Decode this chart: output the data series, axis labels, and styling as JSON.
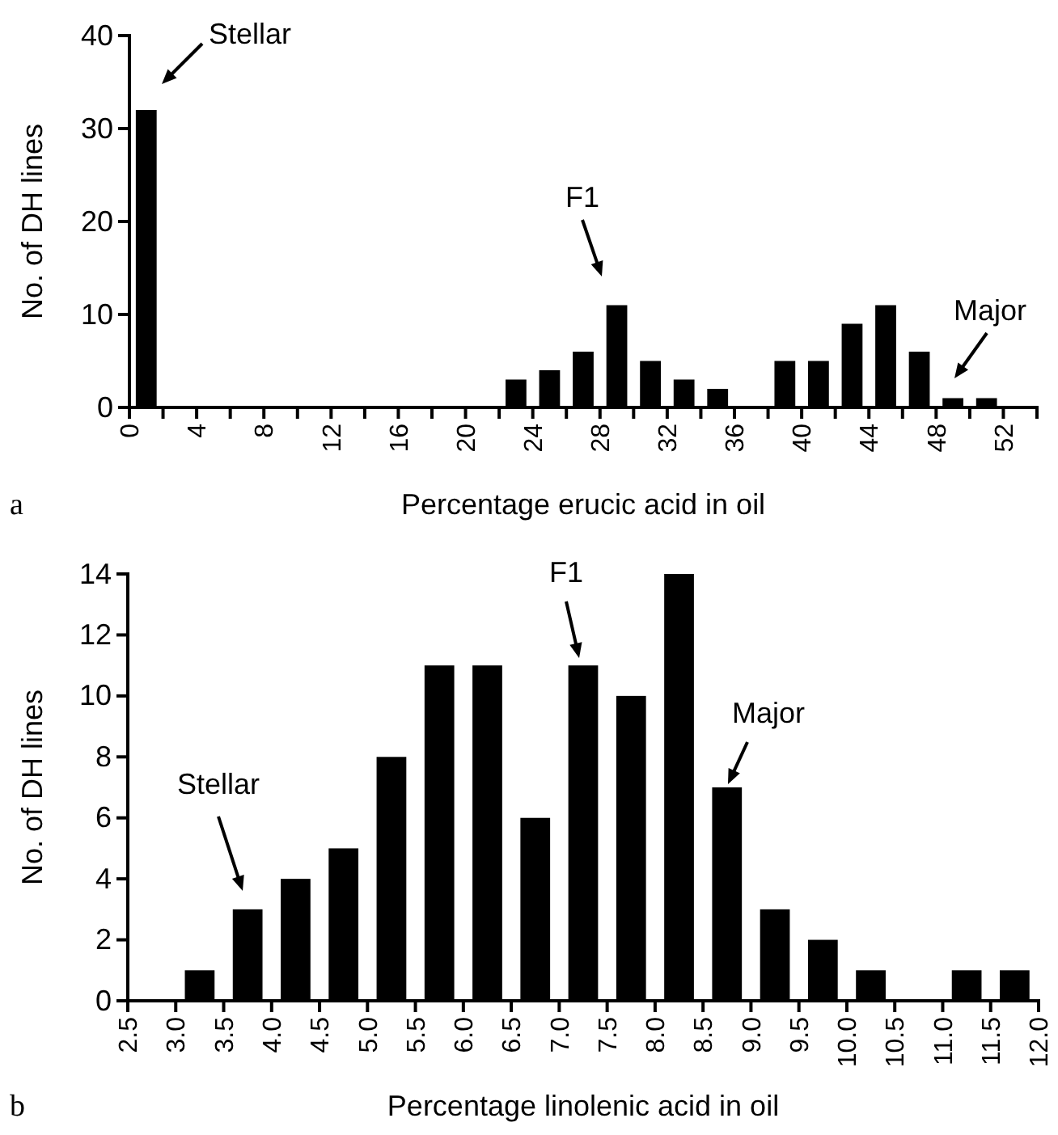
{
  "chart_data": [
    {
      "type": "histogram",
      "xlabel": "Percentage erucic acid in oil",
      "ylabel": "No. of DH lines",
      "bins": [
        0,
        2,
        4,
        6,
        8,
        10,
        12,
        14,
        16,
        18,
        20,
        22,
        24,
        26,
        28,
        30,
        32,
        34,
        36,
        38,
        40,
        42,
        44,
        46,
        48,
        50,
        52,
        54
      ],
      "values": [
        32,
        0,
        0,
        0,
        0,
        0,
        0,
        0,
        0,
        0,
        0,
        3,
        4,
        6,
        11,
        5,
        3,
        2,
        0,
        5,
        5,
        9,
        11,
        6,
        1,
        1,
        0
      ],
      "color": "#000000",
      "xlim": [
        0,
        54
      ],
      "ylim": [
        0,
        40
      ],
      "xticks": [
        0,
        {
          "value": 2,
          "label": null
        },
        4,
        {
          "value": 6,
          "label": null
        },
        8,
        {
          "value": 10,
          "label": null
        },
        12,
        {
          "value": 14,
          "label": null
        },
        16,
        {
          "value": 18,
          "label": null
        },
        20,
        {
          "value": 22,
          "label": null
        },
        24,
        {
          "value": 26,
          "label": null
        },
        28,
        {
          "value": 30,
          "label": null
        },
        32,
        {
          "value": 34,
          "label": null
        },
        36,
        {
          "value": 38,
          "label": null
        },
        40,
        {
          "value": 42,
          "label": null
        },
        44,
        {
          "value": 46,
          "label": null
        },
        48,
        {
          "value": 50,
          "label": null
        },
        52,
        {
          "value": 54,
          "label": null
        }
      ],
      "yticks": [
        0,
        10,
        20,
        30,
        40
      ],
      "annotations": [
        "Stellar",
        "F1",
        "Major",
        "a"
      ]
    },
    {
      "type": "histogram",
      "xlabel": "Percentage linolenic acid in oil",
      "ylabel": "No. of DH lines",
      "bins": [
        2.5,
        3.0,
        3.5,
        4.0,
        4.5,
        5.0,
        5.5,
        6.0,
        6.5,
        7.0,
        7.5,
        8.0,
        8.5,
        9.0,
        9.5,
        10.0,
        10.5,
        11.0,
        11.5,
        12.0
      ],
      "values": [
        0,
        1,
        3,
        4,
        5,
        8,
        11,
        11,
        6,
        11,
        10,
        14,
        7,
        3,
        2,
        1,
        0,
        1,
        1
      ],
      "color": "#000000",
      "xlim": [
        2.5,
        12.0
      ],
      "ylim": [
        0,
        14
      ],
      "xticks": [
        {
          "value": 2.5,
          "label": "2.5"
        },
        {
          "value": 3,
          "label": "3.0"
        },
        {
          "value": 3.5,
          "label": "3.5"
        },
        {
          "value": 4,
          "label": "4.0"
        },
        {
          "value": 4.5,
          "label": "4.5"
        },
        {
          "value": 5,
          "label": "5.0"
        },
        {
          "value": 5.5,
          "label": "5.5"
        },
        {
          "value": 6,
          "label": "6.0"
        },
        {
          "value": 6.5,
          "label": "6.5"
        },
        {
          "value": 7,
          "label": "7.0"
        },
        {
          "value": 7.5,
          "label": "7.5"
        },
        {
          "value": 8,
          "label": "8.0"
        },
        {
          "value": 8.5,
          "label": "8.5"
        },
        {
          "value": 9,
          "label": "9.0"
        },
        {
          "value": 9.5,
          "label": "9.5"
        },
        {
          "value": 10,
          "label": "10.0"
        },
        {
          "value": 10.5,
          "label": "10.5"
        },
        {
          "value": 11,
          "label": "11.0"
        },
        {
          "value": 11.5,
          "label": "11.5"
        },
        {
          "value": 12,
          "label": "12.0"
        }
      ],
      "yticks": [
        0,
        2,
        4,
        6,
        8,
        10,
        12,
        14
      ],
      "annotations": [
        "Stellar",
        "F1",
        "Major",
        "b"
      ]
    }
  ]
}
